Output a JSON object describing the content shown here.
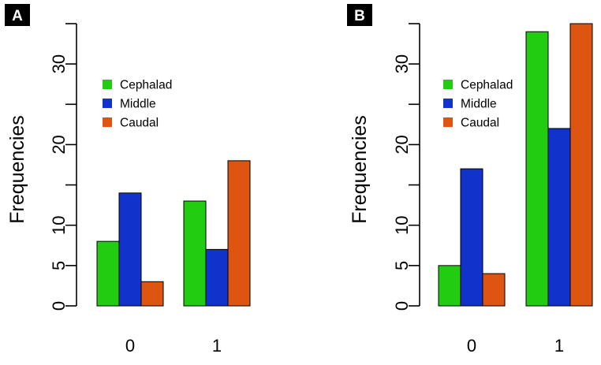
{
  "chart_data": [
    {
      "type": "bar",
      "panel_label": "A",
      "categories": [
        "0",
        "1"
      ],
      "series": [
        {
          "name": "Cephalad",
          "color": "#22cc11",
          "values": [
            8,
            13
          ]
        },
        {
          "name": "Middle",
          "color": "#1133cc",
          "values": [
            14,
            7
          ]
        },
        {
          "name": "Caudal",
          "color": "#dd5511",
          "values": [
            3,
            18
          ]
        }
      ],
      "ylabel": "Frequencies",
      "xlabel": "",
      "yticks": [
        0,
        5,
        10,
        20,
        30
      ],
      "ylim": [
        0,
        35
      ],
      "legend": "top-left",
      "grid": false
    },
    {
      "type": "bar",
      "panel_label": "B",
      "categories": [
        "0",
        "1"
      ],
      "series": [
        {
          "name": "Cephalad",
          "color": "#22cc11",
          "values": [
            5,
            34
          ]
        },
        {
          "name": "Middle",
          "color": "#1133cc",
          "values": [
            17,
            22
          ]
        },
        {
          "name": "Caudal",
          "color": "#dd5511",
          "values": [
            4,
            35
          ]
        }
      ],
      "ylabel": "Frequencies",
      "xlabel": "",
      "yticks": [
        0,
        5,
        10,
        20,
        30
      ],
      "ylim": [
        0,
        35
      ],
      "legend": "top-left",
      "grid": false
    }
  ]
}
